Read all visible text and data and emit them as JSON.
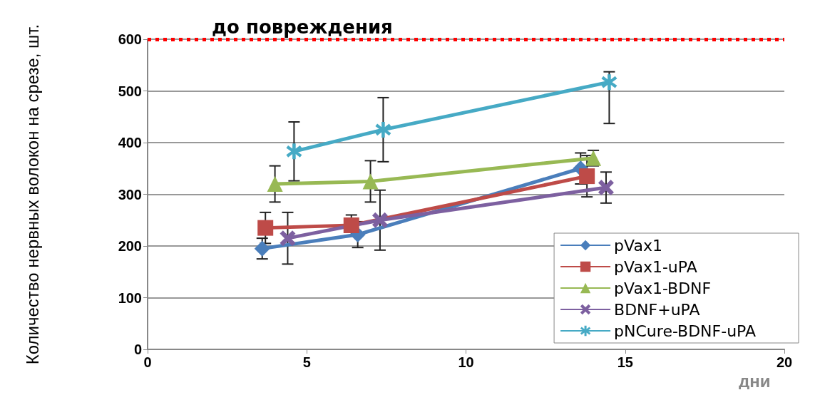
{
  "chart_data": {
    "type": "line",
    "xlabel": "дни",
    "ylabel": "Количество нервных волокон на срезе, шт.",
    "xlim": [
      0,
      20
    ],
    "xticks": [
      0,
      5,
      10,
      15,
      20
    ],
    "ylim": [
      0,
      600
    ],
    "yticks": [
      0,
      100,
      200,
      300,
      400,
      500,
      600
    ],
    "grid": "y",
    "legend": "bottom right",
    "series": [
      {
        "name": "pVax1",
        "color": "#4a7ebb",
        "marker": "diamond",
        "x": [
          3.6,
          6.6,
          13.6
        ],
        "values": [
          195,
          222,
          350
        ],
        "errors": [
          20,
          25,
          30
        ]
      },
      {
        "name": "pVax1-uPA",
        "color": "#be4b48",
        "marker": "square",
        "x": [
          3.7,
          6.4,
          13.8
        ],
        "values": [
          235,
          240,
          335
        ],
        "errors": [
          30,
          20,
          40
        ]
      },
      {
        "name": "pVax1-BDNF",
        "color": "#98b954",
        "marker": "triangle",
        "x": [
          4.0,
          7.0,
          14.0
        ],
        "values": [
          320,
          325,
          370
        ],
        "errors": [
          35,
          40,
          15
        ]
      },
      {
        "name": "BDNF+uPA",
        "color": "#7d60a0",
        "marker": "cross",
        "x": [
          4.4,
          7.3,
          14.4
        ],
        "values": [
          215,
          250,
          313
        ],
        "errors": [
          50,
          58,
          30
        ]
      },
      {
        "name": "pNCure-BDNF-uPA",
        "color": "#46aac5",
        "marker": "star",
        "x": [
          4.6,
          7.4,
          14.5
        ],
        "values": [
          383,
          425,
          517
        ],
        "errors": [
          57,
          62,
          [
            437,
            537
          ]
        ]
      }
    ],
    "ref_lines": [
      {
        "axis": "y",
        "value": 600,
        "label": "до повреждения",
        "color": "#ff0000",
        "line_style": "dotted"
      }
    ]
  }
}
